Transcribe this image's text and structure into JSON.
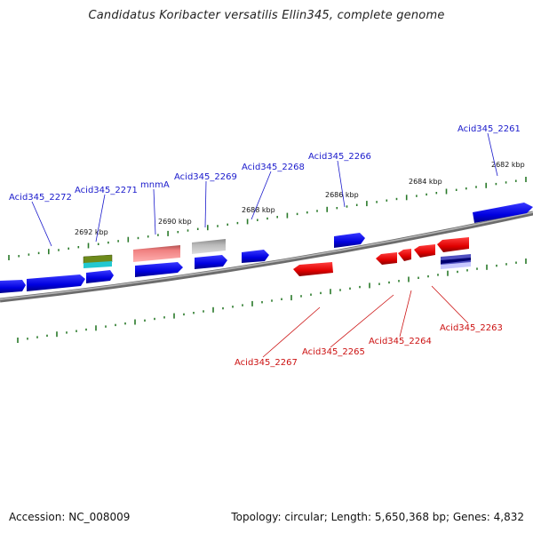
{
  "title": "Candidatus Koribacter versatilis Ellin345, complete genome",
  "footer": {
    "accession": "Accession: NC_008009",
    "summary": "Topology: circular; Length: 5,650,368 bp; Genes: 4,832"
  },
  "kbp_labels": [
    "2692 kbp",
    "2690 kbp",
    "2688 kbp",
    "2686 kbp",
    "2684 kbp",
    "2682 kbp"
  ],
  "forward_genes": [
    "Acid345_2272",
    "Acid345_2271",
    "mnmA",
    "Acid345_2269",
    "Acid345_2268",
    "Acid345_2266",
    "Acid345_2261"
  ],
  "reverse_genes": [
    "Acid345_2267",
    "Acid345_2265",
    "Acid345_2264",
    "Acid345_2263"
  ],
  "colors": {
    "forward_cds": "#0000ee",
    "reverse_cds": "#ee0000",
    "tick": "#2a7a2a",
    "backbone": "#8a8a8a"
  }
}
